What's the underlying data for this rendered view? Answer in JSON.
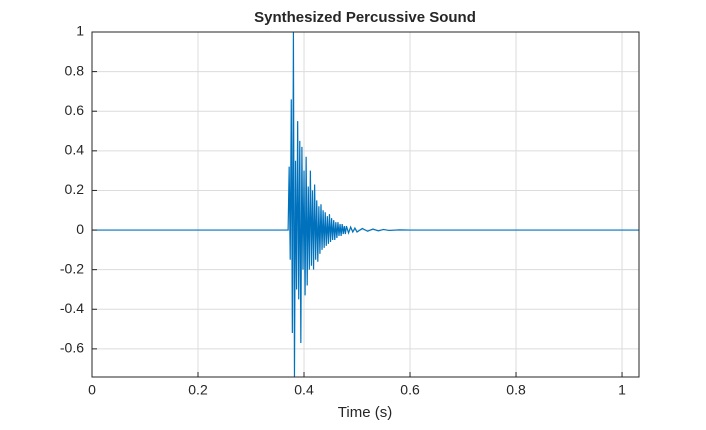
{
  "chart_data": {
    "type": "line",
    "title": "Synthesized Percussive Sound",
    "x_label": "Time (s)",
    "x": [
      0,
      0.37,
      0.372,
      0.374,
      0.376,
      0.378,
      0.38,
      0.382,
      0.384,
      0.386,
      0.388,
      0.39,
      0.392,
      0.394,
      0.396,
      0.398,
      0.4,
      0.402,
      0.404,
      0.406,
      0.408,
      0.41,
      0.412,
      0.414,
      0.416,
      0.418,
      0.42,
      0.422,
      0.424,
      0.426,
      0.428,
      0.43,
      0.432,
      0.434,
      0.436,
      0.438,
      0.44,
      0.442,
      0.444,
      0.446,
      0.448,
      0.45,
      0.452,
      0.454,
      0.456,
      0.458,
      0.46,
      0.462,
      0.464,
      0.466,
      0.468,
      0.47,
      0.472,
      0.474,
      0.476,
      0.478,
      0.48,
      0.484,
      0.488,
      0.492,
      0.496,
      0.5,
      0.51,
      0.52,
      0.53,
      0.54,
      0.55,
      0.56,
      0.58,
      0.6,
      1.032
    ],
    "series": [
      {
        "color": "#0072bd",
        "values": [
          0,
          0,
          0.32,
          -0.15,
          0.66,
          -0.52,
          1.0,
          -0.74,
          0.35,
          -0.3,
          0.55,
          -0.35,
          0.45,
          -0.57,
          0.42,
          -0.2,
          0.3,
          -0.33,
          0.37,
          -0.28,
          0.22,
          -0.2,
          0.3,
          -0.18,
          0.2,
          -0.2,
          0.23,
          -0.15,
          0.15,
          -0.16,
          0.12,
          -0.12,
          0.13,
          -0.1,
          0.1,
          -0.09,
          0.09,
          -0.08,
          0.07,
          -0.07,
          0.08,
          -0.06,
          0.06,
          -0.05,
          0.05,
          -0.05,
          0.04,
          -0.04,
          0.04,
          -0.03,
          0.03,
          -0.03,
          0.03,
          -0.02,
          0.02,
          -0.02,
          0.02,
          -0.015,
          0.015,
          -0.01,
          0.01,
          -0.01,
          0.008,
          -0.006,
          0.005,
          -0.004,
          0.003,
          -0.002,
          0.001,
          0,
          0
        ]
      }
    ],
    "xlim": [
      0,
      1.032
    ],
    "ylim": [
      -0.742,
      1
    ],
    "xticks": [
      0,
      0.2,
      0.4,
      0.6,
      0.8,
      1
    ],
    "yticks": [
      -0.6,
      -0.4,
      -0.2,
      0,
      0.2,
      0.4,
      0.6,
      0.8,
      1
    ],
    "grid": true
  }
}
